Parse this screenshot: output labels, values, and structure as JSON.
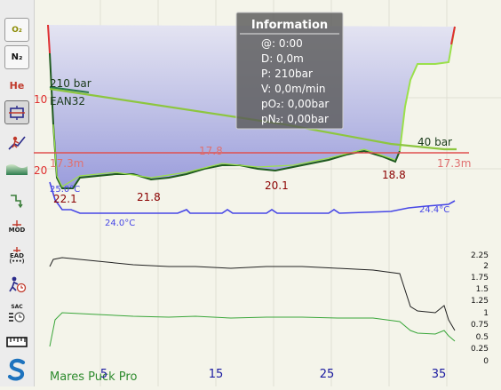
{
  "toolbar": {
    "items": [
      {
        "name": "o2-toggle-button",
        "label": "O₂"
      },
      {
        "name": "n2-toggle-button",
        "label": "N₂"
      },
      {
        "name": "he-toggle-button",
        "label": "He"
      },
      {
        "name": "ceiling-toggle-button",
        "label": ""
      },
      {
        "name": "diver-ascent-button",
        "label": ""
      },
      {
        "name": "profile-gradient-button",
        "label": ""
      },
      {
        "name": "step-view-button",
        "label": ""
      },
      {
        "name": "mod-button",
        "label": "MOD"
      },
      {
        "name": "ead-button",
        "label": "EAD"
      },
      {
        "name": "ead-sub-label",
        "label": "(•••)"
      },
      {
        "name": "diver-time-button",
        "label": ""
      },
      {
        "name": "sac-button",
        "label": "SAC"
      },
      {
        "name": "ruler-button",
        "label": ""
      },
      {
        "name": "app-logo-button",
        "label": ""
      }
    ]
  },
  "info": {
    "title": "Information",
    "lines": [
      "@: 0:00",
      "D: 0,0m",
      "P: 210bar",
      "V: 0,0m/min",
      "pO₂: 0,00bar",
      "pN₂: 0,00bar"
    ]
  },
  "profile": {
    "pressure_start": "210 bar",
    "pressure_end": "40 bar",
    "gas": "EAN32",
    "mean_depth_left": "17.3m",
    "mean_depth_right": "17.3m",
    "mean_depth_mid": "17.8",
    "max_depths": [
      "22.1",
      "21.8",
      "20.1",
      "18.8"
    ],
    "temp_start": "25.0°C",
    "temp_min": "24.0°C",
    "temp_end": "24.4°C",
    "depth_ticks": [
      "10",
      "20"
    ],
    "device": "Mares Puck Pro",
    "time_ticks": [
      "5",
      "15",
      "25",
      "35"
    ],
    "right_scale": [
      "2.25",
      "2",
      "1.75",
      "1.5",
      "1.25",
      "1",
      "0.75",
      "0.5",
      "0.25",
      "0"
    ]
  },
  "colors": {
    "accent_red": "#e03030",
    "temp_blue": "#4646e6",
    "pressure_green": "#8dc63f",
    "depth_label": "#8b0000"
  }
}
